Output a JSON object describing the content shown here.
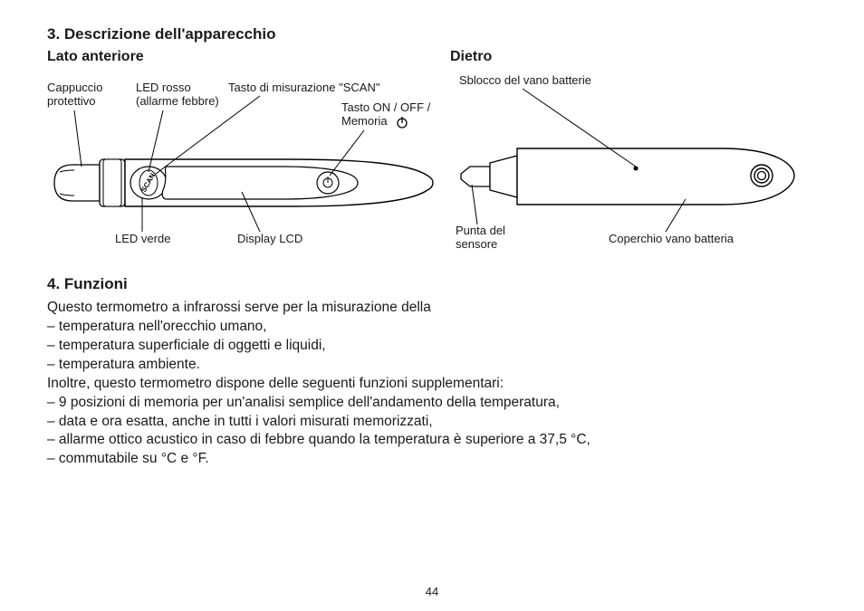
{
  "section3": {
    "title": "3. Descrizione dell'apparecchio",
    "front_label": "Lato anteriore",
    "back_label": "Dietro"
  },
  "front": {
    "cap": "Cappuccio\nprotettivo",
    "red_led": "LED rosso\n(allarme febbre)",
    "scan_btn": "Tasto di misurazione \"SCAN\"",
    "on_off": "Tasto ON / OFF /\nMemoria",
    "green_led": "LED verde",
    "lcd": "Display LCD",
    "scan_text": "SCAN"
  },
  "back": {
    "unlock": "Sblocco del vano batterie",
    "sensor_tip": "Punta del\nsensore",
    "battery_cover": "Coperchio vano batteria"
  },
  "section4": {
    "title": "4. Funzioni",
    "lines": [
      "Questo termometro a infrarossi serve per la misurazione della",
      "– temperatura nell'orecchio umano,",
      "– temperatura superficiale di oggetti e liquidi,",
      "– temperatura ambiente.",
      "Inoltre, questo termometro dispone delle seguenti funzioni supplementari:",
      "– 9 posizioni di memoria per un'analisi semplice dell'andamento della temperatura,",
      "– data e ora esatta, anche in tutti i valori misurati memorizzati,",
      "– allarme ottico acustico in caso di febbre quando la temperatura è superiore a 37,5 °C,",
      "– commutabile su °C e °F."
    ]
  },
  "page_number": "44",
  "style": {
    "stroke": "#000000",
    "stroke_width": 1.3,
    "font_body": 15.5,
    "font_callout": 13
  }
}
